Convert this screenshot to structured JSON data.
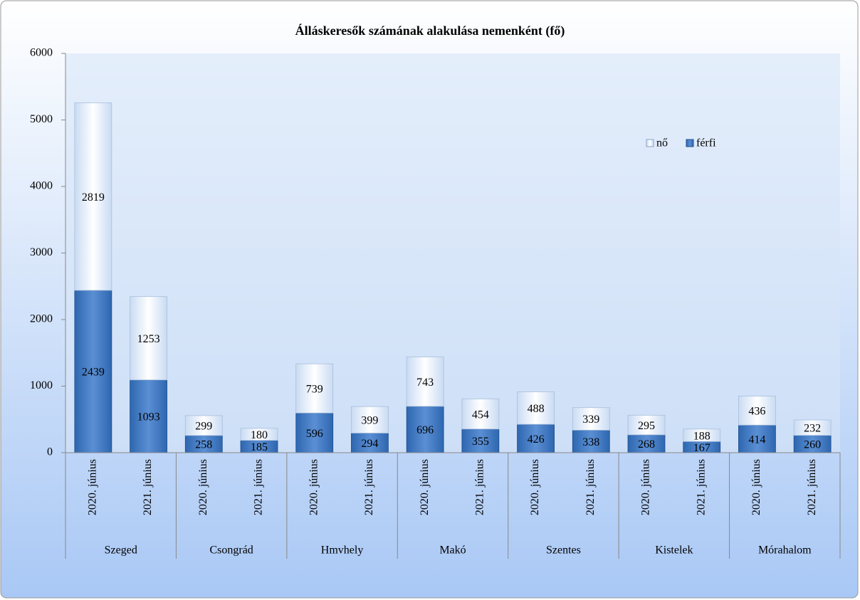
{
  "chart_data": {
    "type": "stacked_bar",
    "title": "Álláskeresők számának alakulása nemenként (fő)",
    "categories": [
      "2020. június",
      "2021. június",
      "2020. június",
      "2021. június",
      "2020. június",
      "2021. június",
      "2020. június",
      "2021. június",
      "2020. június",
      "2021. június",
      "2020. június",
      "2021. június",
      "2020. június",
      "2021. június"
    ],
    "groups": [
      "Szeged",
      "Csongrád",
      "Hmvhely",
      "Makó",
      "Szentes",
      "Kistelek",
      "Mórahalom"
    ],
    "series": [
      {
        "name": "férfi",
        "color": "#2e67b0",
        "values": [
          2439,
          1093,
          258,
          185,
          596,
          294,
          696,
          355,
          426,
          338,
          268,
          167,
          414,
          260
        ]
      },
      {
        "name": "nő",
        "color": "#c9dbf3",
        "values": [
          2819,
          1253,
          299,
          180,
          739,
          399,
          743,
          454,
          488,
          339,
          295,
          188,
          436,
          232
        ]
      }
    ],
    "ylim": [
      0,
      6000
    ],
    "yticks": [
      0,
      1000,
      2000,
      3000,
      4000,
      5000,
      6000
    ],
    "grid": false,
    "legend": "upper right"
  }
}
